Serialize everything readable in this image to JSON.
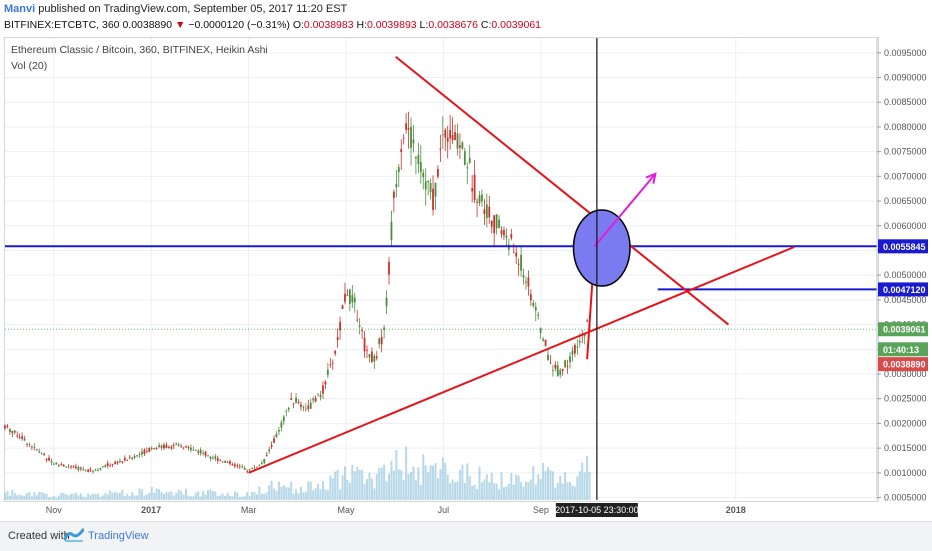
{
  "header": {
    "author": "Manvi",
    "published": " published on TradingView.com, September 05, 2017 11:20 EST",
    "symbol_prefix": "BITFINEX:ETCBTC, 360  0.0038890",
    "change_arrow": "▼",
    "change": " −0.0000120 (−0.31%)",
    "o_label": " O:",
    "o_value": "0.0038983",
    "h_label": " H:",
    "h_value": "0.0039893",
    "l_label": " L:",
    "l_value": "0.0038676",
    "c_label": " C:",
    "c_value": "0.0039061"
  },
  "legend": {
    "title": "Ethereum Classic / Bitcoin, 360, BITFINEX, Heikin Ashi",
    "volume": "Vol (20)"
  },
  "footer": {
    "created_with": "Created with",
    "brand": "TradingView"
  },
  "colors": {
    "trendline": "#e5141a",
    "level": "#1a1ad1",
    "arrow": "#e51bdc",
    "ellipse_fill": "#7b7bf0",
    "candle_up": "#4b8d3c",
    "candle_down": "#c7312b",
    "volume": "#9fcbe0",
    "grid": "#ecf0f3"
  },
  "chart_data": {
    "type": "candlestick",
    "title": "Ethereum Classic / Bitcoin, 360, BITFINEX, Heikin Ashi",
    "y_axis_side": "right",
    "ylim": [
      0.00045,
      0.0098
    ],
    "y_ticks": [
      "0.0095000",
      "0.0090000",
      "0.0085000",
      "0.0080000",
      "0.0075000",
      "0.0070000",
      "0.0065000",
      "0.0060000",
      "0.0055000",
      "0.0050000",
      "0.0045000",
      "0.0040000",
      "0.0035000",
      "0.0030000",
      "0.0025000",
      "0.0020000",
      "0.0015000",
      "0.0010000",
      "0.0005000"
    ],
    "x_ticks": [
      "Nov",
      "2017",
      "Mar",
      "May",
      "Jul",
      "Sep",
      "2018"
    ],
    "x_tick_month_offsets": [
      0,
      2,
      4,
      6,
      8,
      10,
      14
    ],
    "x_origin_month": "2016-11",
    "xlim_months": [
      -1.0,
      16.9
    ],
    "crosshair_label": "2017-10-05 23:30:00",
    "crosshair_month_offset": 11.15,
    "price_badges": [
      {
        "label": "0.0055845",
        "value": 0.0055845,
        "color": "#1a1ad1"
      },
      {
        "label": "0.0047120",
        "value": 0.004712,
        "color": "#1a1ad1"
      },
      {
        "label": "0.0039061",
        "value": 0.0039061,
        "color": "#5aa45a"
      },
      {
        "label": "01:40:13",
        "value": 0.0035,
        "color": "#5aa45a"
      },
      {
        "label": "0.0038890",
        "value": 0.0032,
        "color": "#d94b4b"
      }
    ],
    "price_path": [
      [
        -1.0,
        0.00195
      ],
      [
        -0.7,
        0.00175
      ],
      [
        -0.4,
        0.0015
      ],
      [
        0.0,
        0.0012
      ],
      [
        0.4,
        0.0011
      ],
      [
        0.8,
        0.00105
      ],
      [
        1.2,
        0.00118
      ],
      [
        1.6,
        0.0013
      ],
      [
        2.0,
        0.0015
      ],
      [
        2.4,
        0.00155
      ],
      [
        2.8,
        0.0015
      ],
      [
        3.2,
        0.00135
      ],
      [
        3.6,
        0.0012
      ],
      [
        4.0,
        0.00105
      ],
      [
        4.3,
        0.0012
      ],
      [
        4.6,
        0.0018
      ],
      [
        4.9,
        0.0025
      ],
      [
        5.2,
        0.0023
      ],
      [
        5.5,
        0.0026
      ],
      [
        5.8,
        0.0035
      ],
      [
        6.0,
        0.0047
      ],
      [
        6.2,
        0.0044
      ],
      [
        6.4,
        0.0035
      ],
      [
        6.6,
        0.0033
      ],
      [
        6.8,
        0.004
      ],
      [
        7.0,
        0.0068
      ],
      [
        7.2,
        0.008
      ],
      [
        7.4,
        0.0076
      ],
      [
        7.6,
        0.007
      ],
      [
        7.8,
        0.0065
      ],
      [
        8.0,
        0.0079
      ],
      [
        8.2,
        0.0078
      ],
      [
        8.4,
        0.0076
      ],
      [
        8.6,
        0.0069
      ],
      [
        8.8,
        0.0065
      ],
      [
        9.0,
        0.0061
      ],
      [
        9.2,
        0.0059
      ],
      [
        9.4,
        0.0056
      ],
      [
        9.6,
        0.0052
      ],
      [
        9.8,
        0.0046
      ],
      [
        10.0,
        0.0039
      ],
      [
        10.2,
        0.0032
      ],
      [
        10.4,
        0.00305
      ],
      [
        10.6,
        0.0033
      ],
      [
        10.8,
        0.0036
      ],
      [
        10.95,
        0.004
      ],
      [
        11.05,
        0.0039
      ]
    ],
    "volume_profile": [
      [
        -1.0,
        0.12
      ],
      [
        0.0,
        0.08
      ],
      [
        1.0,
        0.1
      ],
      [
        2.0,
        0.15
      ],
      [
        3.0,
        0.12
      ],
      [
        4.0,
        0.1
      ],
      [
        4.6,
        0.25
      ],
      [
        5.2,
        0.2
      ],
      [
        5.8,
        0.35
      ],
      [
        6.2,
        0.45
      ],
      [
        6.6,
        0.3
      ],
      [
        7.0,
        0.7
      ],
      [
        7.4,
        0.55
      ],
      [
        7.8,
        0.5
      ],
      [
        8.2,
        0.45
      ],
      [
        8.6,
        0.4
      ],
      [
        9.0,
        0.35
      ],
      [
        9.4,
        0.3
      ],
      [
        9.8,
        0.4
      ],
      [
        10.2,
        0.45
      ],
      [
        10.6,
        0.35
      ],
      [
        11.0,
        0.6
      ]
    ],
    "drawings": {
      "horizontal_levels": [
        0.0055845,
        0.004712
      ],
      "level_2_start_month": 12.4,
      "resistance_line": [
        [
          7.02,
          0.00942
        ],
        [
          13.85,
          0.004
        ]
      ],
      "support_line": [
        [
          4.0,
          0.001
        ],
        [
          15.2,
          0.00557
        ]
      ],
      "projection_segment": [
        [
          10.95,
          0.0033
        ],
        [
          11.1,
          0.0055
        ]
      ],
      "arrow": {
        "from": [
          11.1,
          0.00558
        ],
        "to": [
          12.35,
          0.00705
        ]
      },
      "ellipse": {
        "center": [
          11.25,
          0.00555
        ],
        "rx_months": 0.58,
        "ry_value": 0.00077
      }
    }
  }
}
